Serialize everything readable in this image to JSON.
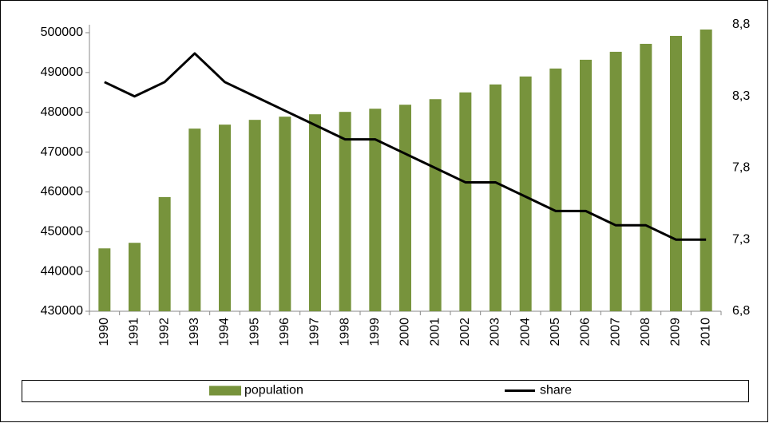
{
  "chart_data": {
    "type": "bar-line",
    "categories": [
      "1990",
      "1991",
      "1992",
      "1993",
      "1994",
      "1995",
      "1996",
      "1997",
      "1998",
      "1999",
      "2000",
      "2001",
      "2002",
      "2003",
      "2004",
      "2005",
      "2006",
      "2007",
      "2008",
      "2009",
      "2010"
    ],
    "series": [
      {
        "name": "population",
        "type": "bar",
        "color": "#77933c",
        "values": [
          445800,
          447200,
          458700,
          475900,
          476900,
          478100,
          478900,
          479500,
          480100,
          480900,
          481900,
          483300,
          485000,
          487000,
          489000,
          491000,
          493200,
          495200,
          497200,
          499200,
          500800
        ]
      },
      {
        "name": "share",
        "type": "line",
        "axis": "y2",
        "color": "#000000",
        "values": [
          8.4,
          8.3,
          8.4,
          8.6,
          8.4,
          8.3,
          8.2,
          8.1,
          8.0,
          8.0,
          7.9,
          7.8,
          7.7,
          7.7,
          7.6,
          7.5,
          7.5,
          7.4,
          7.4,
          7.3,
          7.3
        ]
      }
    ],
    "ylim": [
      430000,
      502000
    ],
    "yticks": [
      430000,
      440000,
      450000,
      460000,
      470000,
      480000,
      490000,
      500000
    ],
    "y2lim": [
      6.8,
      8.8
    ],
    "y2ticks": [
      {
        "value": 6.8,
        "label": "6,8"
      },
      {
        "value": 7.3,
        "label": "7,3"
      },
      {
        "value": 7.8,
        "label": "7,8"
      },
      {
        "value": 8.3,
        "label": "8,3"
      },
      {
        "value": 8.8,
        "label": "8,8"
      }
    ],
    "legend": "bottom"
  }
}
